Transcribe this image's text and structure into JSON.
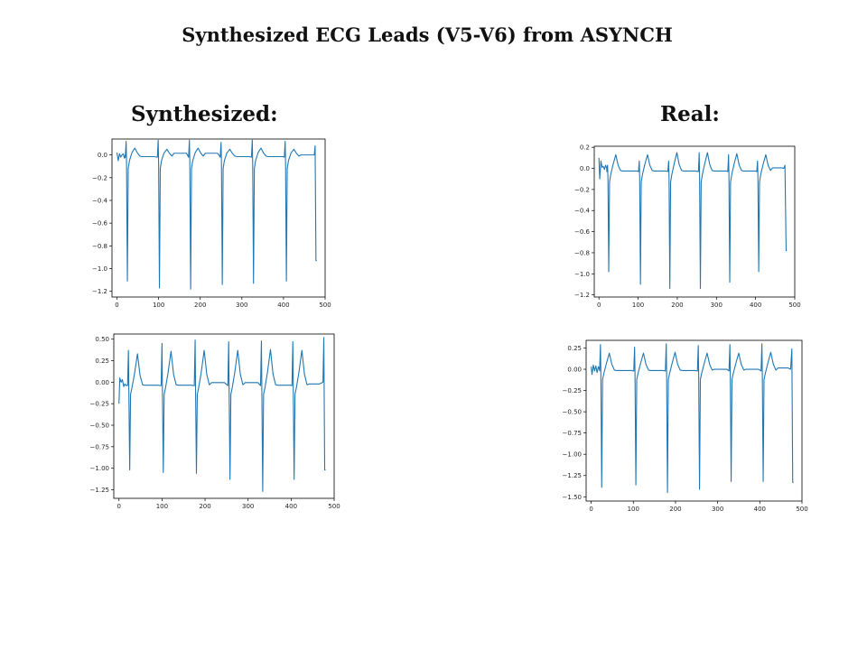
{
  "title": "Synthesized ECG Leads (V5-V6) from ASYNCH",
  "columns": {
    "synthesized": "Synthesized:",
    "real": "Real:"
  },
  "style": {
    "line_color": "#1f77b4",
    "axis_color": "#000000"
  },
  "chart_data": [
    {
      "type": "line",
      "id": "syn-v5",
      "title": "",
      "xlabel": "",
      "ylabel": "",
      "xlim": [
        -12,
        500
      ],
      "ylim": [
        -1.25,
        0.14
      ],
      "xticks": [
        0,
        100,
        200,
        300,
        400,
        500
      ],
      "xtick_labels": [
        "0",
        "100",
        "200",
        "300",
        "400",
        "500"
      ],
      "yticks": [
        0.0,
        -0.2,
        -0.4,
        -0.6,
        -0.8,
        -1.0,
        -1.2
      ],
      "ytick_labels": [
        "0.0",
        "−0.2",
        "−0.4",
        "−0.6",
        "−0.8",
        "−1.0",
        "−1.2"
      ],
      "grid": false,
      "length": 481,
      "baseline": 0.0,
      "start": [
        [
          0,
          0.02
        ],
        [
          3,
          -0.05
        ],
        [
          6,
          0.01
        ],
        [
          9,
          -0.02
        ],
        [
          12,
          0.0
        ],
        [
          15,
          0.01
        ],
        [
          18,
          -0.03
        ],
        [
          21,
          0.02
        ]
      ],
      "beats": [
        {
          "x": 22,
          "peak": 0.12,
          "trough": -1.11,
          "t": 0.06
        },
        {
          "x": 99,
          "peak": 0.13,
          "trough": -1.17,
          "t": 0.05
        },
        {
          "x": 174,
          "peak": 0.13,
          "trough": -1.18,
          "t": 0.06
        },
        {
          "x": 250,
          "peak": 0.11,
          "trough": -1.14,
          "t": 0.05
        },
        {
          "x": 325,
          "peak": 0.13,
          "trough": -1.13,
          "t": 0.06
        },
        {
          "x": 404,
          "peak": 0.12,
          "trough": -1.11,
          "t": 0.05
        }
      ],
      "tail": [
        [
          474,
          0.0
        ],
        [
          476,
          0.08
        ],
        [
          478,
          -0.93
        ],
        [
          480,
          -0.93
        ]
      ]
    },
    {
      "type": "line",
      "id": "syn-v6",
      "title": "",
      "xlabel": "",
      "ylabel": "",
      "xlim": [
        -12,
        500
      ],
      "ylim": [
        -1.35,
        0.56
      ],
      "xticks": [
        0,
        100,
        200,
        300,
        400,
        500
      ],
      "xtick_labels": [
        "0",
        "100",
        "200",
        "300",
        "400",
        "500"
      ],
      "yticks": [
        0.5,
        0.25,
        0.0,
        -0.25,
        -0.5,
        -0.75,
        -1.0,
        -1.25
      ],
      "ytick_labels": [
        "0.50",
        "0.25",
        "0.00",
        "−0.25",
        "−0.50",
        "−0.75",
        "−1.00",
        "−1.25"
      ],
      "grid": false,
      "length": 481,
      "baseline": -0.02,
      "start": [
        [
          0,
          -0.25
        ],
        [
          2,
          0.05
        ],
        [
          5,
          0.0
        ],
        [
          8,
          0.03
        ],
        [
          11,
          -0.05
        ],
        [
          14,
          -0.02
        ],
        [
          17,
          -0.04
        ],
        [
          20,
          -0.03
        ]
      ],
      "beats": [
        {
          "x": 22,
          "peak": 0.37,
          "trough": -1.02,
          "t": 0.33
        },
        {
          "x": 100,
          "peak": 0.45,
          "trough": -1.05,
          "t": 0.36
        },
        {
          "x": 177,
          "peak": 0.49,
          "trough": -1.06,
          "t": 0.37
        },
        {
          "x": 255,
          "peak": 0.47,
          "trough": -1.13,
          "t": 0.37
        },
        {
          "x": 331,
          "peak": 0.48,
          "trough": -1.27,
          "t": 0.38
        },
        {
          "x": 404,
          "peak": 0.47,
          "trough": -1.13,
          "t": 0.37
        }
      ],
      "tail": [
        [
          474,
          0.0
        ],
        [
          476,
          0.52
        ],
        [
          478,
          -1.02
        ],
        [
          480,
          -1.02
        ]
      ]
    },
    {
      "type": "line",
      "id": "real-v5",
      "title": "",
      "xlabel": "",
      "ylabel": "",
      "xlim": [
        -12,
        500
      ],
      "ylim": [
        -1.22,
        0.21
      ],
      "xticks": [
        0,
        100,
        200,
        300,
        400,
        500
      ],
      "xtick_labels": [
        "0",
        "100",
        "200",
        "300",
        "400",
        "500"
      ],
      "yticks": [
        0.2,
        0.0,
        -0.2,
        -0.4,
        -0.6,
        -0.8,
        -1.0,
        -1.2
      ],
      "ytick_labels": [
        "0.2",
        "0.0",
        "−0.2",
        "−0.4",
        "−0.6",
        "−0.8",
        "−1.0",
        "−1.2"
      ],
      "grid": false,
      "length": 481,
      "baseline": -0.01,
      "start": [
        [
          0,
          0.1
        ],
        [
          2,
          -0.1
        ],
        [
          5,
          0.07
        ],
        [
          8,
          0.01
        ],
        [
          11,
          0.02
        ],
        [
          14,
          -0.01
        ],
        [
          17,
          0.03
        ],
        [
          20,
          0.0
        ]
      ],
      "beats": [
        {
          "x": 22,
          "peak": 0.03,
          "trough": -0.98,
          "t": 0.13
        },
        {
          "x": 103,
          "peak": 0.07,
          "trough": -1.1,
          "t": 0.13
        },
        {
          "x": 178,
          "peak": 0.07,
          "trough": -1.14,
          "t": 0.15
        },
        {
          "x": 256,
          "peak": 0.15,
          "trough": -1.14,
          "t": 0.15
        },
        {
          "x": 331,
          "peak": 0.13,
          "trough": -1.08,
          "t": 0.14
        },
        {
          "x": 405,
          "peak": 0.07,
          "trough": -0.98,
          "t": 0.13
        }
      ],
      "tail": [
        [
          472,
          0.0
        ],
        [
          475,
          0.03
        ],
        [
          478,
          -0.78
        ],
        [
          480,
          -0.78
        ]
      ]
    },
    {
      "type": "line",
      "id": "real-v6",
      "title": "",
      "xlabel": "",
      "ylabel": "",
      "xlim": [
        -12,
        500
      ],
      "ylim": [
        -1.55,
        0.34
      ],
      "xticks": [
        0,
        100,
        200,
        300,
        400,
        500
      ],
      "xtick_labels": [
        "0",
        "100",
        "200",
        "300",
        "400",
        "500"
      ],
      "yticks": [
        0.25,
        0.0,
        -0.25,
        -0.5,
        -0.75,
        -1.0,
        -1.25,
        -1.5
      ],
      "ytick_labels": [
        "0.25",
        "0.00",
        "−0.25",
        "−0.50",
        "−0.75",
        "−1.00",
        "−1.25",
        "−1.50"
      ],
      "grid": false,
      "length": 481,
      "baseline": 0.0,
      "start": [
        [
          0,
          0.03
        ],
        [
          2,
          -0.06
        ],
        [
          5,
          0.05
        ],
        [
          8,
          -0.02
        ],
        [
          11,
          0.04
        ],
        [
          14,
          -0.04
        ],
        [
          17,
          0.03
        ],
        [
          20,
          -0.01
        ]
      ],
      "beats": [
        {
          "x": 22,
          "peak": 0.29,
          "trough": -1.39,
          "t": 0.19
        },
        {
          "x": 103,
          "peak": 0.26,
          "trough": -1.36,
          "t": 0.19
        },
        {
          "x": 178,
          "peak": 0.3,
          "trough": -1.45,
          "t": 0.2
        },
        {
          "x": 254,
          "peak": 0.28,
          "trough": -1.41,
          "t": 0.19
        },
        {
          "x": 329,
          "peak": 0.29,
          "trough": -1.32,
          "t": 0.19
        },
        {
          "x": 405,
          "peak": 0.3,
          "trough": -1.32,
          "t": 0.2
        }
      ],
      "tail": [
        [
          473,
          0.0
        ],
        [
          476,
          0.24
        ],
        [
          478,
          -1.33
        ],
        [
          480,
          -1.33
        ]
      ]
    }
  ]
}
